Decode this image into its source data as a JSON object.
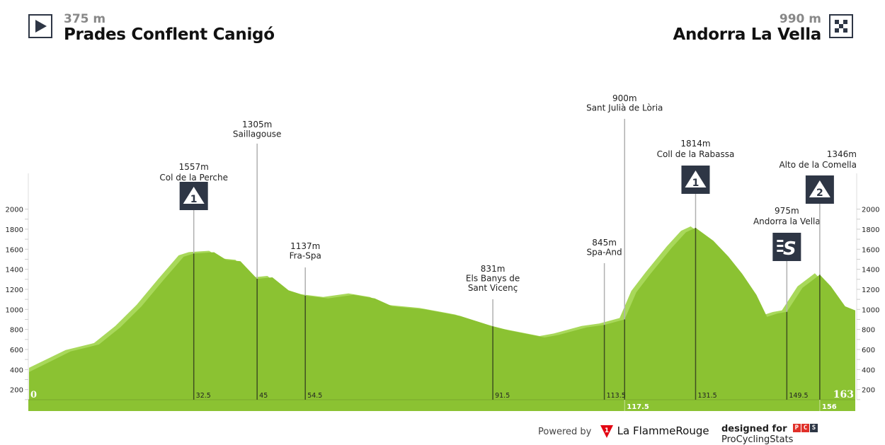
{
  "start": {
    "altitude": "375 m",
    "name": "Prades Conflent Canigó",
    "icon": "play-triangle-icon"
  },
  "finish": {
    "altitude": "990 m",
    "name": "Andorra La Vella",
    "icon": "checkered-flag-icon"
  },
  "chart_data": {
    "type": "area",
    "xlabel": "",
    "ylabel": "",
    "xlim": [
      0,
      163
    ],
    "ylim": [
      100,
      2400
    ],
    "yticks": [
      200,
      400,
      600,
      800,
      1000,
      1200,
      1400,
      1600,
      1800,
      2000
    ],
    "x": [
      0,
      8.2,
      13.8,
      18,
      22.2,
      26.4,
      30.5,
      32.5,
      36.5,
      38.9,
      41.7,
      45,
      48,
      51.2,
      54.5,
      59,
      64,
      68.2,
      71.7,
      78,
      85,
      91.5,
      94.7,
      101.7,
      104.5,
      110,
      113.5,
      117.5,
      119.8,
      122.6,
      126.8,
      129.6,
      131.5,
      135,
      138,
      140.7,
      143.5,
      145.6,
      147.7,
      149.5,
      152.6,
      156,
      158.2,
      161,
      163
    ],
    "y": [
      375,
      580,
      650,
      820,
      1030,
      1285,
      1525,
      1557,
      1570,
      1495,
      1480,
      1305,
      1320,
      1190,
      1137,
      1110,
      1145,
      1110,
      1030,
      1000,
      935,
      831,
      790,
      720,
      745,
      820,
      845,
      900,
      1170,
      1355,
      1615,
      1770,
      1814,
      1685,
      1525,
      1355,
      1145,
      925,
      960,
      975,
      1215,
      1346,
      1230,
      1030,
      990
    ],
    "km_labels_top": [
      "0",
      "32.5",
      "45",
      "54.5",
      "91.5",
      "113.5",
      "131.5",
      "149.5",
      "163"
    ],
    "km_labels_bottom": [
      "117.5",
      "156"
    ],
    "markers": [
      {
        "km": 32.5,
        "elev": 1557,
        "alt": "1557m",
        "name": "Col de la Perche",
        "badge": "1",
        "type": "climb"
      },
      {
        "km": 45,
        "elev": 1305,
        "alt": "1305m",
        "name": "Saillagouse",
        "type": "town"
      },
      {
        "km": 54.5,
        "elev": 1137,
        "alt": "1137m",
        "name": "Fra-Spa",
        "type": "border"
      },
      {
        "km": 91.5,
        "elev": 831,
        "alt": "831m",
        "name": "Els Banys de Sant Vicenç",
        "type": "town"
      },
      {
        "km": 113.5,
        "elev": 845,
        "alt": "845m",
        "name": "Spa-And",
        "type": "border"
      },
      {
        "km": 117.5,
        "elev": 900,
        "alt": "900m",
        "name": "Sant Julià de Lòria",
        "type": "town"
      },
      {
        "km": 131.5,
        "elev": 1814,
        "alt": "1814m",
        "name": "Coll de la Rabassa",
        "badge": "1",
        "type": "climb"
      },
      {
        "km": 149.5,
        "elev": 975,
        "alt": "975m",
        "name": "Andorra la Vella",
        "badge": "S",
        "type": "sprint"
      },
      {
        "km": 156,
        "elev": 1346,
        "alt": "1346m",
        "name": "Alto de la Comella",
        "badge": "2",
        "type": "climb"
      }
    ],
    "colors": {
      "profile": "#8bc232",
      "shadow": "#a8d85a",
      "badge": "#2e3645",
      "marker_line": "#3f5020",
      "guide_line": "#b0b0b0"
    }
  },
  "footer": {
    "powered_by": "Powered by",
    "brand1": "La FlammeRouge",
    "designed_for": "designed for",
    "brand2": "ProCyclingStats",
    "pcs_letters": "PCS"
  }
}
